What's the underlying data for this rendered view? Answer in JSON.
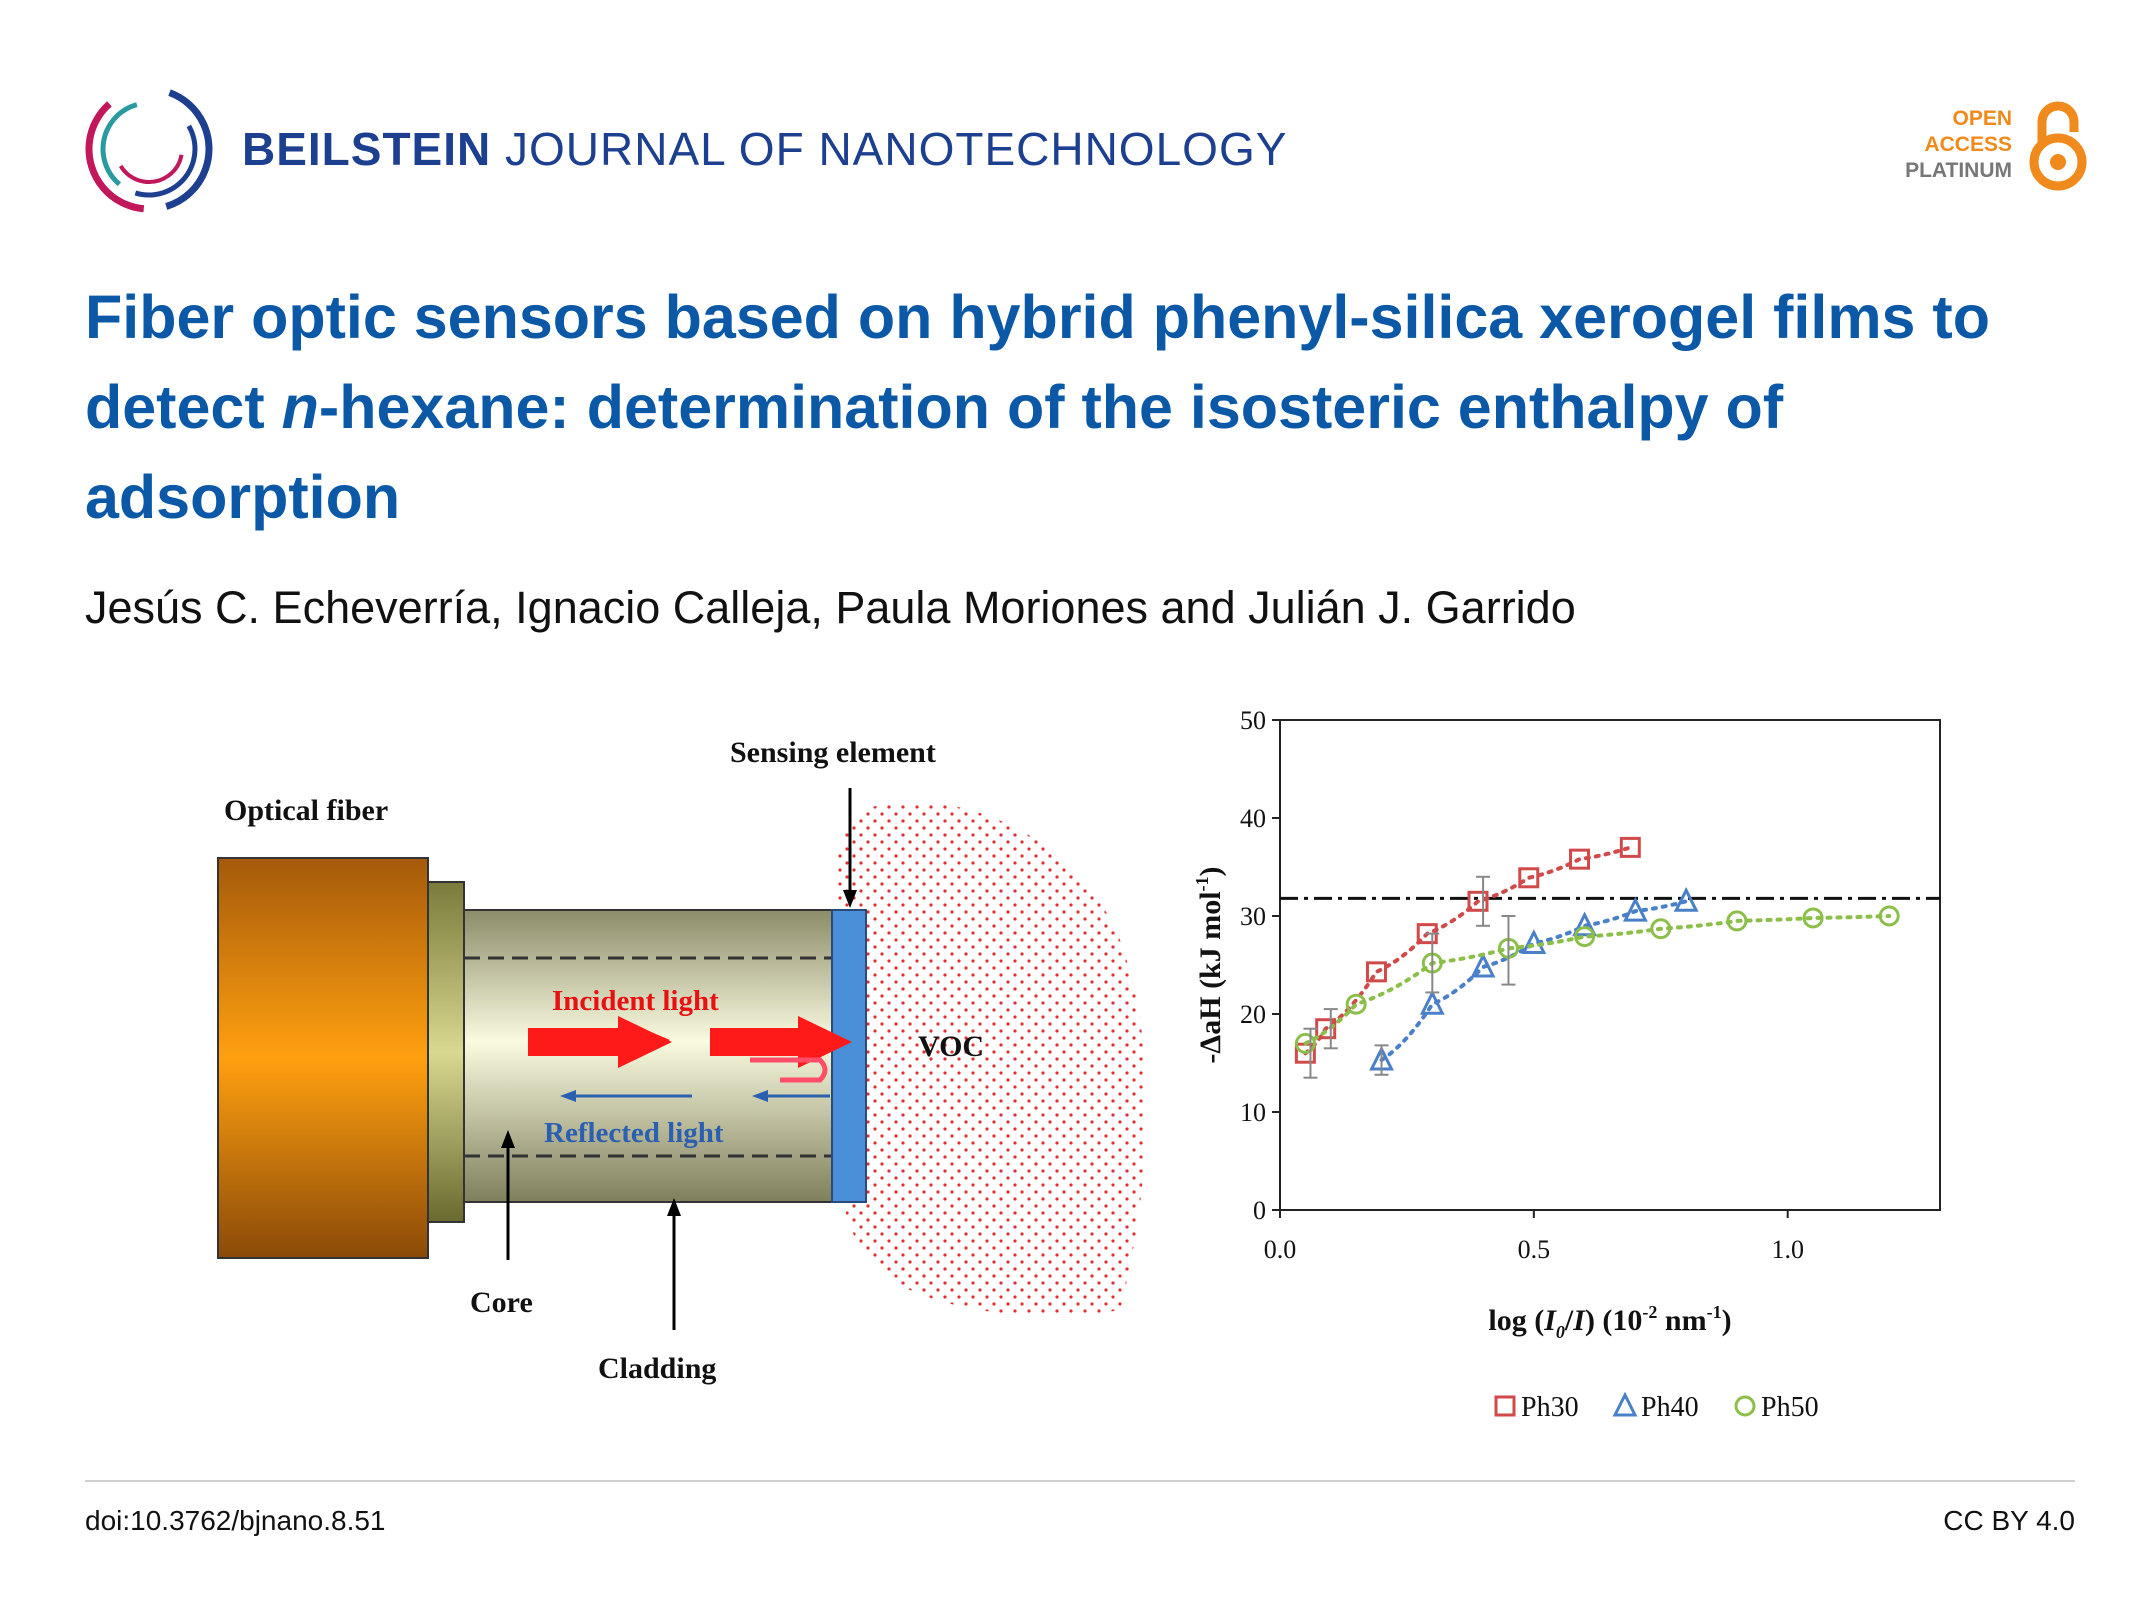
{
  "header": {
    "journal_bold": "BEILSTEIN",
    "journal_rest": " JOURNAL OF NANOTECHNOLOGY",
    "oa_line1": "OPEN",
    "oa_line2": "ACCESS",
    "oa_line3": "PLATINUM"
  },
  "article": {
    "title_part1": "Fiber optic sensors based on hybrid phenyl-silica xerogel films to detect ",
    "title_italic": "n",
    "title_part2": "-hexane: determination of the isosteric enthalpy of adsorption",
    "authors": "Jesús C. Echeverría, Ignacio Calleja, Paula Moriones and Julián J. Garrido"
  },
  "diagram": {
    "sensing_element": "Sensing element",
    "optical_fiber": "Optical fiber",
    "incident_light": "Incident light",
    "reflected_light": "Reflected light",
    "voc": "VOC",
    "core": "Core",
    "cladding": "Cladding"
  },
  "chart_data": {
    "type": "scatter",
    "xlabel_pre": "log (",
    "xlabel_I0": "I",
    "xlabel_sub0": "0",
    "xlabel_slash": "/",
    "xlabel_I": "I",
    "xlabel_post": ") (10",
    "xlabel_exp1": "-2",
    "xlabel_unit": " nm",
    "xlabel_exp2": "-1",
    "xlabel_end": ")",
    "ylabel_main": "-ΔaH (kJ mol",
    "ylabel_exp": "-1",
    "ylabel_end": ")",
    "xlim": [
      0,
      1.3
    ],
    "ylim": [
      0,
      50
    ],
    "xticks": [
      0.0,
      0.5,
      1.0
    ],
    "xtick_labels": [
      "0.0",
      "0.5",
      "1.0"
    ],
    "yticks": [
      0,
      10,
      20,
      30,
      40,
      50
    ],
    "ytick_labels": [
      "0",
      "10",
      "20",
      "30",
      "40",
      "50"
    ],
    "reference_line_y": 31.8,
    "series": [
      {
        "name": "Ph30",
        "marker": "square",
        "color": "#d04a4a",
        "x": [
          0.05,
          0.09,
          0.19,
          0.29,
          0.39,
          0.49,
          0.59,
          0.69
        ],
        "y": [
          16,
          18.5,
          24.3,
          28.2,
          31.5,
          33.9,
          35.8,
          37
        ]
      },
      {
        "name": "Ph40",
        "marker": "triangle",
        "color": "#4a80c8",
        "x": [
          0.2,
          0.3,
          0.4,
          0.5,
          0.6,
          0.7,
          0.8
        ],
        "y": [
          15.3,
          21,
          24.8,
          27.2,
          29,
          30.5,
          31.5
        ]
      },
      {
        "name": "Ph50",
        "marker": "circle",
        "color": "#8cbf4a",
        "x": [
          0.05,
          0.15,
          0.3,
          0.45,
          0.6,
          0.75,
          0.9,
          1.05,
          1.2
        ],
        "y": [
          17,
          21,
          25.2,
          26.7,
          27.9,
          28.7,
          29.5,
          29.8,
          30
        ]
      }
    ]
  },
  "footer": {
    "doi": "doi:10.3762/bjnano.8.51",
    "license": "CC BY 4.0"
  }
}
